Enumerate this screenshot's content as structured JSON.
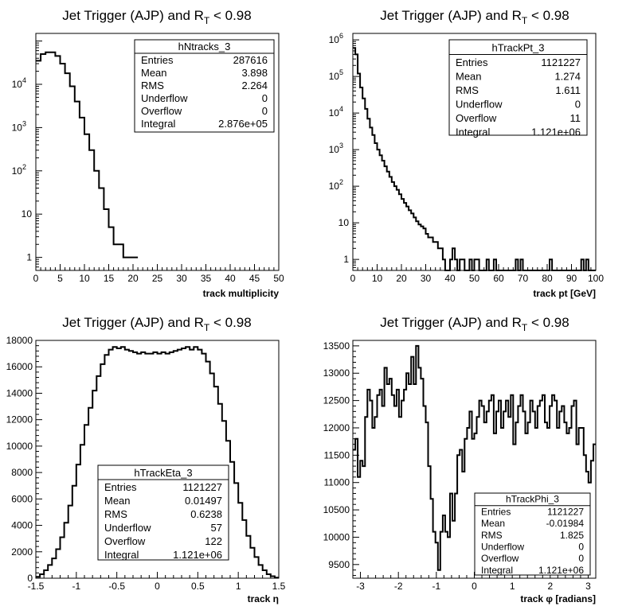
{
  "chart_data": [
    {
      "type": "bar",
      "title_main": "Jet Trigger (AJP) and R",
      "title_sub": "T",
      "title_tail": " < 0.98",
      "xlabel": "track multiplicity",
      "ylabel": "",
      "log_y": true,
      "xlim": [
        0,
        50
      ],
      "ylim": [
        0.5,
        150000
      ],
      "x_ticks": [
        "0",
        "5",
        "10",
        "15",
        "20",
        "25",
        "30",
        "35",
        "40",
        "45",
        "50"
      ],
      "y_ticks": [
        "1",
        "10",
        "10",
        "10",
        "10"
      ],
      "y_tick_exponents": [
        "",
        "",
        "2",
        "3",
        "4"
      ],
      "bin_edges_start": 0,
      "bin_width": 1,
      "values": [
        35000,
        50000,
        55000,
        55000,
        45000,
        30000,
        18000,
        9000,
        4000,
        1700,
        700,
        300,
        100,
        40,
        13,
        5,
        2,
        2,
        1,
        1,
        1
      ],
      "stats": {
        "name": "hNtracks_3",
        "rows": [
          {
            "label": "Entries",
            "value": "287616"
          },
          {
            "label": "Mean",
            "value": "3.898"
          },
          {
            "label": "RMS",
            "value": "2.264"
          },
          {
            "label": "Underflow",
            "value": "0"
          },
          {
            "label": "Overflow",
            "value": "0"
          },
          {
            "label": "Integral",
            "value": "2.876e+05"
          }
        ]
      }
    },
    {
      "type": "bar",
      "title_main": "Jet Trigger (AJP) and R",
      "title_sub": "T",
      "title_tail": " < 0.98",
      "xlabel": "track pt [GeV]",
      "ylabel": "",
      "log_y": true,
      "xlim": [
        0,
        100
      ],
      "ylim": [
        0.5,
        1500000
      ],
      "x_ticks": [
        "0",
        "10",
        "20",
        "30",
        "40",
        "50",
        "60",
        "70",
        "80",
        "90",
        "100"
      ],
      "y_ticks": [
        "1",
        "10",
        "10",
        "10",
        "10",
        "10",
        "10"
      ],
      "y_tick_exponents": [
        "",
        "",
        "2",
        "3",
        "4",
        "5",
        "6"
      ],
      "bin_edges_start": 0,
      "bin_width": 1,
      "values": [
        600000,
        400000,
        120000,
        50000,
        25000,
        13000,
        7000,
        4000,
        2500,
        1500,
        1000,
        700,
        500,
        350,
        250,
        180,
        130,
        100,
        80,
        60,
        45,
        35,
        28,
        22,
        18,
        14,
        11,
        9,
        8,
        7,
        5,
        4,
        4,
        3,
        3,
        2,
        2,
        1,
        0,
        0,
        1,
        2,
        1,
        0,
        1,
        1,
        0,
        0,
        1,
        0,
        1,
        1,
        0,
        0,
        0,
        1,
        0,
        0,
        1,
        0,
        0,
        0,
        0,
        0,
        0,
        0,
        0,
        1,
        0,
        1,
        0,
        0,
        0,
        0,
        0,
        0,
        0,
        0,
        0,
        0,
        0,
        1,
        0,
        0,
        0,
        0,
        0,
        0,
        0,
        0,
        0,
        0,
        0,
        0,
        1,
        0,
        1,
        0,
        0,
        0
      ],
      "stats": {
        "name": "hTrackPt_3",
        "rows": [
          {
            "label": "Entries",
            "value": "1121227"
          },
          {
            "label": "Mean",
            "value": "1.274"
          },
          {
            "label": "RMS",
            "value": "1.611"
          },
          {
            "label": "Underflow",
            "value": "0"
          },
          {
            "label": "Overflow",
            "value": "11"
          },
          {
            "label": "Integral",
            "value": "1.121e+06"
          }
        ]
      }
    },
    {
      "type": "bar",
      "title_main": "Jet Trigger (AJP) and R",
      "title_sub": "T",
      "title_tail": " < 0.98",
      "xlabel": "track η",
      "ylabel": "",
      "log_y": false,
      "xlim": [
        -1.5,
        1.5
      ],
      "ylim": [
        0,
        18000
      ],
      "x_ticks": [
        "-1.5",
        "-1",
        "-0.5",
        "0",
        "0.5",
        "1",
        "1.5"
      ],
      "y_ticks": [
        "0",
        "2000",
        "4000",
        "6000",
        "8000",
        "10000",
        "12000",
        "14000",
        "16000",
        "18000"
      ],
      "y_tick_exponents": [],
      "bin_edges_start": -1.5,
      "bin_width": 0.05,
      "values": [
        100,
        300,
        600,
        1000,
        1500,
        2200,
        3100,
        4200,
        5500,
        7000,
        8600,
        10100,
        11600,
        12900,
        14200,
        15300,
        16200,
        16900,
        17300,
        17500,
        17400,
        17500,
        17300,
        17200,
        17100,
        17000,
        17100,
        17000,
        17000,
        17100,
        17000,
        17100,
        17000,
        17100,
        17200,
        17300,
        17400,
        17500,
        17300,
        17500,
        17300,
        17000,
        16400,
        15500,
        14500,
        13200,
        11900,
        10400,
        8800,
        7200,
        5700,
        4400,
        3200,
        2300,
        1600,
        1000,
        600,
        300,
        150,
        50
      ],
      "stats": {
        "name": "hTrackEta_3",
        "rows": [
          {
            "label": "Entries",
            "value": "1121227"
          },
          {
            "label": "Mean",
            "value": "0.01497"
          },
          {
            "label": "RMS",
            "value": "0.6238"
          },
          {
            "label": "Underflow",
            "value": "57"
          },
          {
            "label": "Overflow",
            "value": "122"
          },
          {
            "label": "Integral",
            "value": "1.121e+06"
          }
        ]
      }
    },
    {
      "type": "bar",
      "title_main": "Jet Trigger (AJP) and R",
      "title_sub": "T",
      "title_tail": " < 0.98",
      "xlabel": "track φ [radians]",
      "ylabel": "",
      "log_y": false,
      "xlim": [
        -3.2,
        3.2
      ],
      "ylim": [
        9250,
        13600
      ],
      "x_ticks": [
        "-3",
        "-2",
        "-1",
        "0",
        "1",
        "2",
        "3"
      ],
      "x_tick_values": [
        -3,
        -2,
        -1,
        0,
        1,
        2,
        3
      ],
      "y_ticks": [
        "9500",
        "10000",
        "10500",
        "11000",
        "11500",
        "12000",
        "12500",
        "13000",
        "13500"
      ],
      "y_tick_values": [
        9500,
        10000,
        10500,
        11000,
        11500,
        12000,
        12500,
        13000,
        13500
      ],
      "y_tick_exponents": [],
      "bin_edges_start": -3.2,
      "bin_width": 0.064,
      "values": [
        11600,
        11800,
        11100,
        11400,
        11300,
        12200,
        12700,
        12500,
        12000,
        12200,
        12600,
        12700,
        12400,
        13100,
        12800,
        12900,
        12600,
        12400,
        12700,
        12200,
        12500,
        12700,
        13000,
        12800,
        13300,
        12800,
        13500,
        13100,
        12900,
        12400,
        12100,
        11300,
        10700,
        10100,
        9900,
        9400,
        10100,
        10400,
        10100,
        10000,
        10800,
        10300,
        10800,
        11500,
        11600,
        11200,
        11800,
        12000,
        12300,
        11800,
        11900,
        12200,
        12500,
        12400,
        12100,
        12300,
        12500,
        12600,
        11900,
        12300,
        12500,
        12000,
        12300,
        12500,
        12200,
        12600,
        11700,
        12100,
        12400,
        12600,
        12300,
        11900,
        12100,
        12500,
        12300,
        12000,
        12400,
        12500,
        12600,
        12100,
        12000,
        12400,
        12600,
        12500,
        12000,
        12300,
        12400,
        12100,
        11900,
        12000,
        12400,
        12500,
        11700,
        12000,
        12000,
        11500,
        11200,
        11000,
        11400,
        11700
      ],
      "stats": {
        "name": "hTrackPhi_3",
        "rows": [
          {
            "label": "Entries",
            "value": "1121227"
          },
          {
            "label": "Mean",
            "value": "-0.01984"
          },
          {
            "label": "RMS",
            "value": "1.825"
          },
          {
            "label": "Underflow",
            "value": "0"
          },
          {
            "label": "Overflow",
            "value": "0"
          },
          {
            "label": "Integral",
            "value": "1.121e+06"
          }
        ]
      }
    }
  ]
}
